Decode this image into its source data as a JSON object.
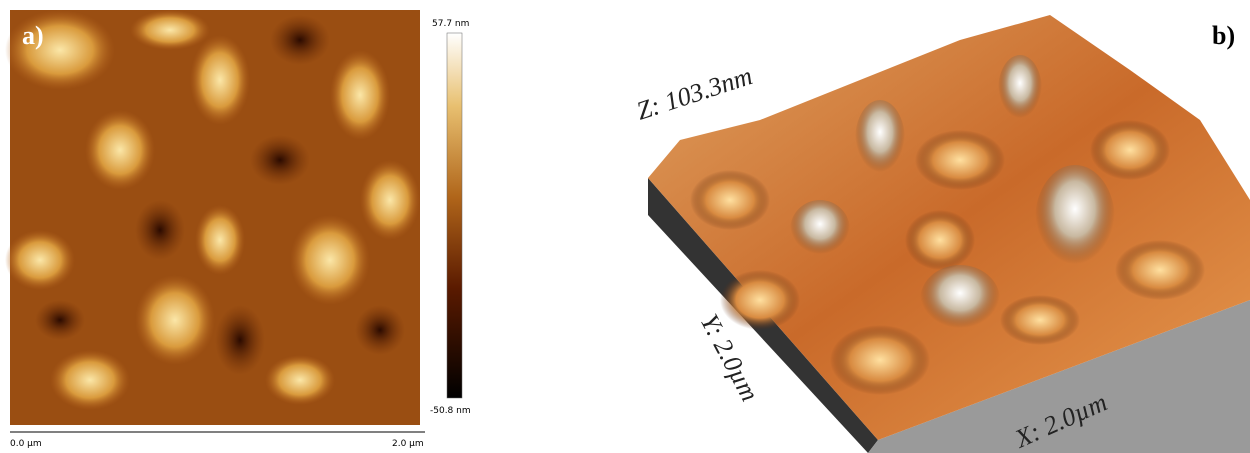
{
  "panel_a": {
    "label": "a)",
    "colorbar_max": "57.7 nm",
    "colorbar_min": "-50.8 nm",
    "x_start": "0.0 µm",
    "x_end": "2.0 µm"
  },
  "panel_b": {
    "label": "b)",
    "z_label": "Z: 103.3nm",
    "y_label": "Y: 2.0µm",
    "x_label": "X: 2.0µm"
  }
}
